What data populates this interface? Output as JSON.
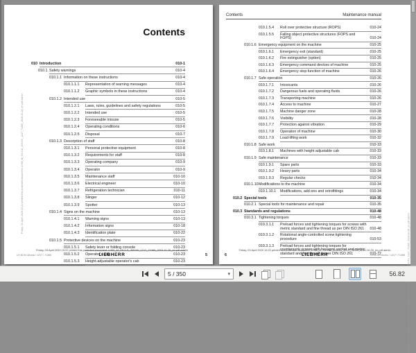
{
  "left_page": {
    "title": "Contents",
    "page_number": "5",
    "entries": [
      {
        "n": "010",
        "t": "Introduction",
        "p": "010-1",
        "b": true
      },
      {
        "n": "010.1",
        "t": "Safety warnings",
        "p": "010-4"
      },
      {
        "n": "010.1.1",
        "t": "Information on these instructions",
        "p": "010-4"
      },
      {
        "n": "010.1.1.1",
        "t": "Representation of warning messages",
        "p": "010-4"
      },
      {
        "n": "010.1.1.2",
        "t": "Graphic symbols in these instructions",
        "p": "010-4"
      },
      {
        "n": "010.1.2",
        "t": "Intended use",
        "p": "010-5"
      },
      {
        "n": "010.1.2.1",
        "t": "Laws, rules, guidelines and safety regulations",
        "p": "010-5"
      },
      {
        "n": "010.1.2.2",
        "t": "Intended use",
        "p": "010-5"
      },
      {
        "n": "010.1.2.3",
        "t": "Foreseeable misuse",
        "p": "010-5"
      },
      {
        "n": "010.1.2.4",
        "t": "Operating conditions",
        "p": "010-6"
      },
      {
        "n": "010.1.2.5",
        "t": "Disposal",
        "p": "010-7"
      },
      {
        "n": "010.1.3",
        "t": "Description of staff",
        "p": "010-8"
      },
      {
        "n": "010.1.3.1",
        "t": "Personal protective equipment",
        "p": "010-8"
      },
      {
        "n": "010.1.3.2",
        "t": "Requirements for staff",
        "p": "010-8"
      },
      {
        "n": "010.1.3.3",
        "t": "Operating company",
        "p": "010-9"
      },
      {
        "n": "010.1.3.4",
        "t": "Operator",
        "p": "010-9"
      },
      {
        "n": "010.1.3.5",
        "t": "Maintenance staff",
        "p": "010-10"
      },
      {
        "n": "010.1.3.6",
        "t": "Electrical engineer",
        "p": "010-10"
      },
      {
        "n": "010.1.3.7",
        "t": "Refrigeration technician",
        "p": "010-11"
      },
      {
        "n": "010.1.3.8",
        "t": "Slinger",
        "p": "010-12"
      },
      {
        "n": "010.1.3.9",
        "t": "Spotter",
        "p": "010-13"
      },
      {
        "n": "010.1.4",
        "t": "Signs on the machine",
        "p": "010-13"
      },
      {
        "n": "010.1.4.1",
        "t": "Warning signs",
        "p": "010-13"
      },
      {
        "n": "010.1.4.2",
        "t": "Information signs",
        "p": "010-18"
      },
      {
        "n": "010.1.4.3",
        "t": "Identification plate",
        "p": "010-22"
      },
      {
        "n": "010.1.5",
        "t": "Protective devices on the machine",
        "p": "010-23"
      },
      {
        "n": "010.1.5.1",
        "t": "Safety lever or folding console",
        "p": "010-23"
      },
      {
        "n": "010.1.5.2",
        "t": "Operator's cab",
        "p": "010-23"
      },
      {
        "n": "010.1.5.3",
        "t": "Height-adjustable operator's cab",
        "p": "010-23"
      }
    ]
  },
  "right_page": {
    "header_left": "Contents",
    "header_right": "Maintenance manual",
    "page_number": "6",
    "entries": [
      {
        "n": "010.1.5.4",
        "t": "Roll over protective structure (ROPS)",
        "p": "010-24"
      },
      {
        "n": "010.1.5.5",
        "t": "Falling object protective structures (FOPS and FGPS)",
        "p": "010-24"
      },
      {
        "n": "010.1.6",
        "t": "Emergency equipment on the machine",
        "p": "010-25"
      },
      {
        "n": "010.1.6.1",
        "t": "Emergency exit (standard)",
        "p": "010-25"
      },
      {
        "n": "010.1.6.2",
        "t": "Fire extinguisher (option)",
        "p": "010-25"
      },
      {
        "n": "010.1.6.3",
        "t": "Emergency command devices of machine",
        "p": "010-25"
      },
      {
        "n": "010.1.6.4",
        "t": "Emergency stop function of machine",
        "p": "010-26"
      },
      {
        "n": "010.1.7",
        "t": "Safe operation",
        "p": "010-26"
      },
      {
        "n": "010.1.7.1",
        "t": "Intoxicants",
        "p": "010-26"
      },
      {
        "n": "010.1.7.2",
        "t": "Dangerous fuels and operating fluids",
        "p": "010-26"
      },
      {
        "n": "010.1.7.3",
        "t": "Transporting machine",
        "p": "010-26"
      },
      {
        "n": "010.1.7.4",
        "t": "Access to machine",
        "p": "010-27"
      },
      {
        "n": "010.1.7.5",
        "t": "Machine danger zone",
        "p": "010-28"
      },
      {
        "n": "010.1.7.6",
        "t": "Visibility",
        "p": "010-28"
      },
      {
        "n": "010.1.7.7",
        "t": "Protection against vibration",
        "p": "010-29"
      },
      {
        "n": "010.1.7.8",
        "t": "Operation of machine",
        "p": "010-30"
      },
      {
        "n": "010.1.7.9",
        "t": "Load-lifting work",
        "p": "010-32"
      },
      {
        "n": "010.1.8",
        "t": "Safe work",
        "p": "010-33"
      },
      {
        "n": "010.1.8.1",
        "t": "Machines with height adjustable cab",
        "p": "010-33"
      },
      {
        "n": "010.1.9",
        "t": "Safe maintenance",
        "p": "010-33"
      },
      {
        "n": "010.1.9.1",
        "t": "Spare parts",
        "p": "010-33"
      },
      {
        "n": "010.1.9.2",
        "t": "Heavy parts",
        "p": "010-34"
      },
      {
        "n": "010.1.9.3",
        "t": "Regular checks",
        "p": "010-34"
      },
      {
        "n": "010.1.10",
        "t": "Modifications to the machine",
        "p": "010-34"
      },
      {
        "n": "010.1.10.1",
        "t": "Modifications, add-ons and retrofittings",
        "p": "010-34"
      },
      {
        "n": "010.2",
        "t": "Special tools",
        "p": "010-35",
        "b": true
      },
      {
        "n": "010.2.1",
        "t": "Special tools for maintenance and repair",
        "p": "010-35"
      },
      {
        "n": "010.3",
        "t": "Standards and regulations",
        "p": "010-48",
        "b": true
      },
      {
        "n": "010.3.1",
        "t": "Tightening torques",
        "p": "010-48"
      },
      {
        "n": "010.3.1.1",
        "t": "Preload forces and tightening torques for screws with metric standard and fine thread as per DIN ISO 261",
        "p": "010-48"
      },
      {
        "n": "010.3.1.2",
        "t": "Rotational angle-controlled screw tightening procedure",
        "p": "010-53"
      },
      {
        "n": "010.3.1.3",
        "t": "Preload forces and tightening torques for countersunk screws with hexagon socket and metric standard and fine thread as per DIN ISO 261",
        "p": "010-72"
      }
    ]
  },
  "footer": {
    "print_line": "Friday, 03.April 2020 15:22 printed this protected document: LH60_M_G6.0-D_4f4V4V_1217_71365_2019-10-28_en.pdf admin",
    "brand": "LIEBHERR",
    "model_line": "LH 60 M Litronic / 1217 / 71365"
  },
  "toolbar": {
    "page_field": "5 / 350",
    "caret": "▾",
    "zoom_value": "56.82"
  }
}
